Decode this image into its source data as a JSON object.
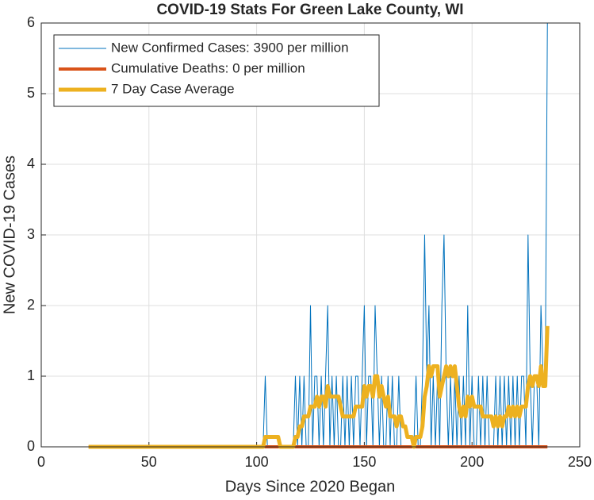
{
  "chart_data": {
    "type": "line",
    "title": "COVID-19 Stats For Green Lake County, WI",
    "xlabel": "Days Since 2020 Began",
    "ylabel": "New COVID-19 Cases",
    "xlim": [
      0,
      250
    ],
    "ylim": [
      0,
      6
    ],
    "xticks": [
      0,
      50,
      100,
      150,
      200,
      250
    ],
    "yticks": [
      0,
      1,
      2,
      3,
      4,
      5,
      6
    ],
    "grid": true,
    "legend": "upper left",
    "x": [
      22,
      23,
      24,
      25,
      26,
      27,
      28,
      29,
      30,
      31,
      32,
      33,
      34,
      35,
      36,
      37,
      38,
      39,
      40,
      41,
      42,
      43,
      44,
      45,
      46,
      47,
      48,
      49,
      50,
      51,
      52,
      53,
      54,
      55,
      56,
      57,
      58,
      59,
      60,
      61,
      62,
      63,
      64,
      65,
      66,
      67,
      68,
      69,
      70,
      71,
      72,
      73,
      74,
      75,
      76,
      77,
      78,
      79,
      80,
      81,
      82,
      83,
      84,
      85,
      86,
      87,
      88,
      89,
      90,
      91,
      92,
      93,
      94,
      95,
      96,
      97,
      98,
      99,
      100,
      101,
      102,
      103,
      104,
      105,
      106,
      107,
      108,
      109,
      110,
      111,
      112,
      113,
      114,
      115,
      116,
      117,
      118,
      119,
      120,
      121,
      122,
      123,
      124,
      125,
      126,
      127,
      128,
      129,
      130,
      131,
      132,
      133,
      134,
      135,
      136,
      137,
      138,
      139,
      140,
      141,
      142,
      143,
      144,
      145,
      146,
      147,
      148,
      149,
      150,
      151,
      152,
      153,
      154,
      155,
      156,
      157,
      158,
      159,
      160,
      161,
      162,
      163,
      164,
      165,
      166,
      167,
      168,
      169,
      170,
      171,
      172,
      173,
      174,
      175,
      176,
      177,
      178,
      179,
      180,
      181,
      182,
      183,
      184,
      185,
      186,
      187,
      188,
      189,
      190,
      191,
      192,
      193,
      194,
      195,
      196,
      197,
      198,
      199,
      200,
      201,
      202,
      203,
      204,
      205,
      206,
      207,
      208,
      209,
      210,
      211,
      212,
      213,
      214,
      215,
      216,
      217,
      218,
      219,
      220,
      221,
      222,
      223,
      224,
      225,
      226,
      227,
      228,
      229,
      230,
      231,
      232,
      233,
      234,
      235
    ],
    "series": [
      {
        "name": "New Confirmed Cases: 3900 per million",
        "color": "#0072BD",
        "values": [
          0,
          0,
          0,
          0,
          0,
          0,
          0,
          0,
          0,
          0,
          0,
          0,
          0,
          0,
          0,
          0,
          0,
          0,
          0,
          0,
          0,
          0,
          0,
          0,
          0,
          0,
          0,
          0,
          0,
          0,
          0,
          0,
          0,
          0,
          0,
          0,
          0,
          0,
          0,
          0,
          0,
          0,
          0,
          0,
          0,
          0,
          0,
          0,
          0,
          0,
          0,
          0,
          0,
          0,
          0,
          0,
          0,
          0,
          0,
          0,
          0,
          0,
          0,
          0,
          0,
          0,
          0,
          0,
          0,
          0,
          0,
          0,
          0,
          0,
          0,
          0,
          0,
          0,
          0,
          0,
          0,
          0,
          1,
          0,
          0,
          0,
          0,
          0,
          0,
          0,
          0,
          0,
          0,
          0,
          0,
          0,
          1,
          0,
          1,
          0,
          1,
          0,
          0,
          2,
          0,
          1,
          1,
          0,
          1,
          0,
          1,
          2,
          0,
          1,
          0,
          1,
          0,
          0,
          1,
          0,
          1,
          0,
          1,
          0,
          1,
          1,
          0,
          1,
          2,
          0,
          1,
          1,
          0,
          2,
          1,
          0,
          1,
          0,
          0,
          1,
          0,
          1,
          0,
          0,
          1,
          0,
          0,
          0,
          0,
          0,
          0,
          0,
          1,
          0,
          0,
          1,
          3,
          1,
          2,
          0,
          1,
          0,
          1,
          0,
          2,
          3,
          1,
          0,
          1,
          0,
          1,
          0,
          1,
          0,
          1,
          0,
          2,
          0,
          1,
          0,
          0,
          1,
          0,
          1,
          0,
          1,
          0,
          0,
          0,
          1,
          0,
          1,
          0,
          1,
          0,
          1,
          0,
          1,
          0,
          1,
          0,
          1,
          1,
          0,
          3,
          1,
          0,
          1,
          1,
          0,
          2,
          1,
          1,
          6
        ]
      },
      {
        "name": "Cumulative Deaths: 0 per million",
        "color": "#D95319",
        "values": [
          0,
          0,
          0,
          0,
          0,
          0,
          0,
          0,
          0,
          0,
          0,
          0,
          0,
          0,
          0,
          0,
          0,
          0,
          0,
          0,
          0,
          0,
          0,
          0,
          0,
          0,
          0,
          0,
          0,
          0,
          0,
          0,
          0,
          0,
          0,
          0,
          0,
          0,
          0,
          0,
          0,
          0,
          0,
          0,
          0,
          0,
          0,
          0,
          0,
          0,
          0,
          0,
          0,
          0,
          0,
          0,
          0,
          0,
          0,
          0,
          0,
          0,
          0,
          0,
          0,
          0,
          0,
          0,
          0,
          0,
          0,
          0,
          0,
          0,
          0,
          0,
          0,
          0,
          0,
          0,
          0,
          0,
          0,
          0,
          0,
          0,
          0,
          0,
          0,
          0,
          0,
          0,
          0,
          0,
          0,
          0,
          0,
          0,
          0,
          0,
          0,
          0,
          0,
          0,
          0,
          0,
          0,
          0,
          0,
          0,
          0,
          0,
          0,
          0,
          0,
          0,
          0,
          0,
          0,
          0,
          0,
          0,
          0,
          0,
          0,
          0,
          0,
          0,
          0,
          0,
          0,
          0,
          0,
          0,
          0,
          0,
          0,
          0,
          0,
          0,
          0,
          0,
          0,
          0,
          0,
          0,
          0,
          0,
          0,
          0,
          0,
          0,
          0,
          0,
          0,
          0,
          0,
          0,
          0,
          0,
          0,
          0,
          0,
          0,
          0,
          0,
          0,
          0,
          0,
          0,
          0,
          0,
          0,
          0,
          0,
          0,
          0,
          0,
          0,
          0,
          0,
          0,
          0,
          0,
          0,
          0,
          0,
          0,
          0,
          0,
          0,
          0,
          0,
          0,
          0,
          0,
          0,
          0,
          0,
          0,
          0,
          0,
          0,
          0,
          0,
          0,
          0,
          0,
          0,
          0,
          0,
          0,
          0,
          0
        ]
      },
      {
        "name": "7 Day Case Average",
        "color": "#EDB120",
        "values": [
          0,
          0,
          0,
          0,
          0,
          0,
          0,
          0,
          0,
          0,
          0,
          0,
          0,
          0,
          0,
          0,
          0,
          0,
          0,
          0,
          0,
          0,
          0,
          0,
          0,
          0,
          0,
          0,
          0,
          0,
          0,
          0,
          0,
          0,
          0,
          0,
          0,
          0,
          0,
          0,
          0,
          0,
          0,
          0,
          0,
          0,
          0,
          0,
          0,
          0,
          0,
          0,
          0,
          0,
          0,
          0,
          0,
          0,
          0,
          0,
          0,
          0,
          0,
          0,
          0,
          0,
          0,
          0,
          0,
          0,
          0,
          0,
          0,
          0,
          0,
          0,
          0,
          0,
          0,
          0,
          0,
          0,
          0.14,
          0.14,
          0.14,
          0.14,
          0.14,
          0.14,
          0.14,
          0,
          0,
          0,
          0,
          0,
          0,
          0,
          0.14,
          0.14,
          0.29,
          0.29,
          0.43,
          0.43,
          0.43,
          0.57,
          0.57,
          0.57,
          0.71,
          0.57,
          0.71,
          0.71,
          0.57,
          0.86,
          0.71,
          0.71,
          0.71,
          0.71,
          0.71,
          0.57,
          0.43,
          0.43,
          0.43,
          0.43,
          0.43,
          0.43,
          0.57,
          0.57,
          0.57,
          0.57,
          0.86,
          0.71,
          0.86,
          0.86,
          0.71,
          1,
          1,
          0.71,
          0.86,
          0.71,
          0.57,
          0.71,
          0.43,
          0.43,
          0.43,
          0.29,
          0.43,
          0.43,
          0.29,
          0.29,
          0.14,
          0.14,
          0.14,
          0,
          0.14,
          0.14,
          0.14,
          0.29,
          0.71,
          0.86,
          1.14,
          1,
          1.14,
          1.14,
          1.14,
          0.71,
          0.86,
          1,
          1.14,
          1,
          1.14,
          1,
          1.14,
          0.86,
          0.57,
          0.43,
          0.57,
          0.43,
          0.71,
          0.57,
          0.71,
          0.57,
          0.57,
          0.57,
          0.57,
          0.43,
          0.43,
          0.43,
          0.43,
          0.43,
          0.29,
          0.43,
          0.29,
          0.43,
          0.29,
          0.43,
          0.43,
          0.57,
          0.43,
          0.57,
          0.43,
          0.57,
          0.43,
          0.57,
          0.57,
          0.57,
          0.86,
          1,
          0.86,
          1,
          1,
          0.86,
          1.14,
          0.86,
          0.86,
          1.71
        ]
      }
    ]
  }
}
